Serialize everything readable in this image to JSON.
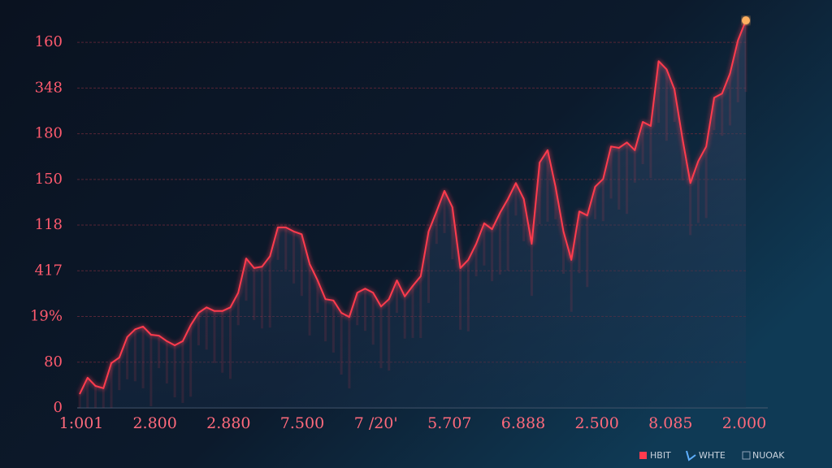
{
  "chart_data": {
    "type": "line",
    "y_labels": [
      "0",
      "80",
      "19%",
      "417",
      "118",
      "150",
      "180",
      "348",
      "160"
    ],
    "x_labels": [
      "1:001",
      "2.800",
      "2.880",
      "7.500",
      "7 /20'",
      "5.707",
      "6.888",
      "2.500",
      "8.085",
      "2.000"
    ],
    "ylim": [
      0,
      8.5
    ],
    "grid": true,
    "series": [
      {
        "name": "HBIT",
        "color": "#ff3b4e",
        "values": [
          0.3,
          0.66,
          0.48,
          0.43,
          0.98,
          1.1,
          1.55,
          1.72,
          1.78,
          1.6,
          1.58,
          1.46,
          1.37,
          1.46,
          1.81,
          2.08,
          2.2,
          2.12,
          2.12,
          2.2,
          2.52,
          3.27,
          3.06,
          3.09,
          3.32,
          3.95,
          3.95,
          3.86,
          3.8,
          3.15,
          2.79,
          2.38,
          2.35,
          2.08,
          1.99,
          2.52,
          2.61,
          2.52,
          2.22,
          2.38,
          2.79,
          2.44,
          2.67,
          2.88,
          3.86,
          4.3,
          4.75,
          4.39,
          3.06,
          3.24,
          3.59,
          4.04,
          3.91,
          4.27,
          4.57,
          4.92,
          4.57,
          3.59,
          5.37,
          5.64,
          4.84,
          3.86,
          3.24,
          4.3,
          4.21,
          4.84,
          5.01,
          5.72,
          5.69,
          5.81,
          5.64,
          6.26,
          6.17,
          7.59,
          7.41,
          6.97,
          5.9,
          4.92,
          5.4,
          5.72,
          6.79,
          6.88,
          7.32,
          8.04,
          8.48
        ]
      }
    ],
    "legend": [
      "HBIT",
      "WHTE",
      "NUOAK"
    ]
  }
}
